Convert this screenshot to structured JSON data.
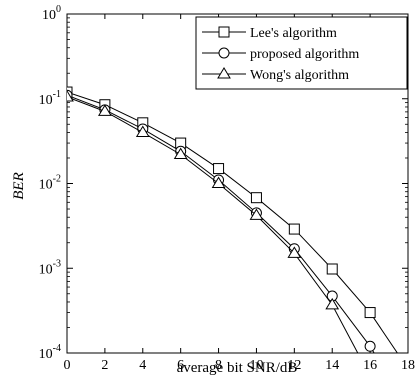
{
  "chart_data": {
    "type": "line",
    "title": "",
    "xlabel": "average bit SNR/dB",
    "ylabel": "BER",
    "xlim": [
      0,
      18
    ],
    "ylim": [
      0.0001,
      1
    ],
    "yscale": "log",
    "grid": false,
    "legend_position": "top-right",
    "x_ticks": [
      0,
      2,
      4,
      6,
      8,
      10,
      12,
      14,
      16,
      18
    ],
    "x_tick_labels": [
      "0",
      "2",
      "4",
      "6",
      "8",
      "10",
      "12",
      "14",
      "16",
      "18"
    ],
    "y_ticks": [
      1,
      0.1,
      0.01,
      0.001,
      0.0001
    ],
    "y_tick_labels": [
      {
        "base": "10",
        "exp": "0"
      },
      {
        "base": "10",
        "exp": "-1"
      },
      {
        "base": "10",
        "exp": "-2"
      },
      {
        "base": "10",
        "exp": "-3"
      },
      {
        "base": "10",
        "exp": "-4"
      }
    ],
    "series": [
      {
        "name": "Lee's algorithm",
        "marker": "square",
        "points": [
          [
            0,
            0.12
          ],
          [
            2,
            0.085
          ],
          [
            4,
            0.052
          ],
          [
            6,
            0.03
          ],
          [
            8,
            0.015
          ],
          [
            10,
            0.0068
          ],
          [
            12,
            0.0029
          ],
          [
            14,
            0.00098
          ],
          [
            16,
            0.0003
          ],
          [
            17.8,
            7.59e-05
          ]
        ]
      },
      {
        "name": "proposed algorithm",
        "marker": "circle",
        "points": [
          [
            0,
            0.11
          ],
          [
            2,
            0.074
          ],
          [
            4,
            0.044
          ],
          [
            6,
            0.024
          ],
          [
            8,
            0.011
          ],
          [
            10,
            0.0045
          ],
          [
            12,
            0.0017
          ],
          [
            14,
            0.00047
          ],
          [
            16,
            0.00012
          ],
          [
            16.45,
            8.14e-05
          ]
        ]
      },
      {
        "name": "Wong's algorithm",
        "marker": "triangle",
        "points": [
          [
            0,
            0.105
          ],
          [
            2,
            0.071
          ],
          [
            4,
            0.04
          ],
          [
            6,
            0.022
          ],
          [
            8,
            0.01
          ],
          [
            10,
            0.0042
          ],
          [
            12,
            0.0015
          ],
          [
            14,
            0.00037
          ],
          [
            15.5,
            8.63e-05
          ]
        ]
      }
    ]
  }
}
